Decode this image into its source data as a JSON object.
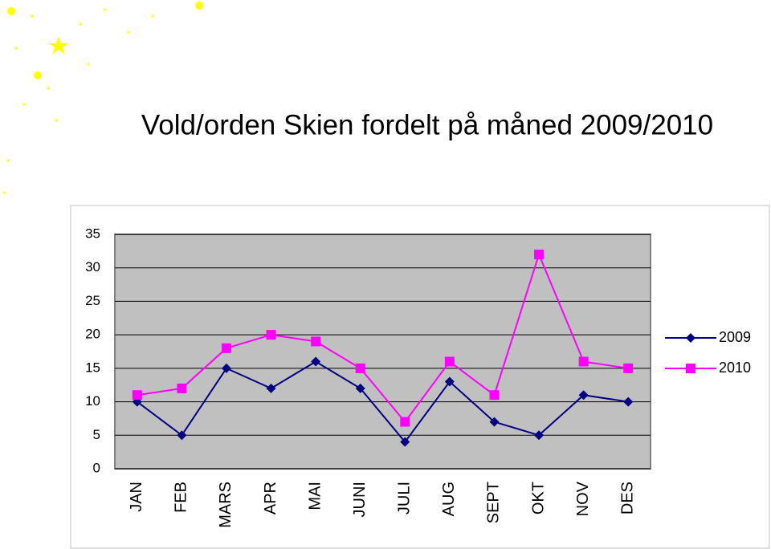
{
  "chart_data": {
    "type": "line",
    "title": "Vold/orden Skien fordelt på måned  2009/2010",
    "categories": [
      "JAN",
      "FEB",
      "MARS",
      "APR",
      "MAI",
      "JUNI",
      "JULI",
      "AUG",
      "SEPT",
      "OKT",
      "NOV",
      "DES"
    ],
    "series": [
      {
        "name": "2009",
        "color": "#000080",
        "marker": "diamond",
        "values": [
          10,
          5,
          15,
          12,
          16,
          12,
          4,
          13,
          7,
          5,
          11,
          10
        ]
      },
      {
        "name": "2010",
        "color": "#ff00ff",
        "marker": "square",
        "values": [
          11,
          12,
          18,
          20,
          19,
          15,
          7,
          16,
          11,
          32,
          16,
          15
        ]
      }
    ],
    "ylim": [
      0,
      35
    ],
    "yticks": [
      0,
      5,
      10,
      15,
      20,
      25,
      30,
      35
    ],
    "grid": true,
    "legend": "right"
  }
}
